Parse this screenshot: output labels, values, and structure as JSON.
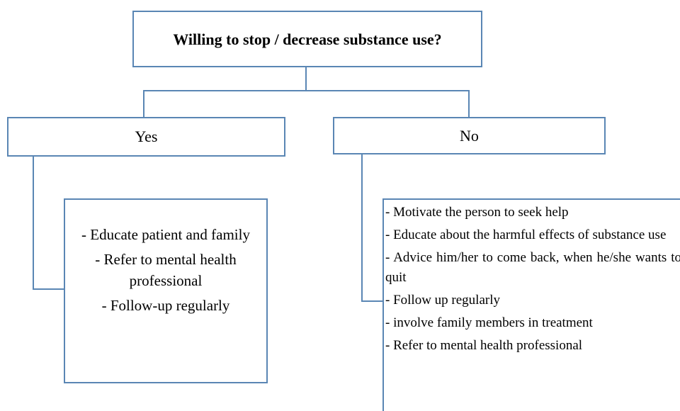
{
  "question": "Willing to stop / decrease substance use?",
  "yes": {
    "label": "Yes",
    "items": [
      "- Educate patient and family",
      "- Refer to mental health professional",
      "- Follow-up regularly"
    ]
  },
  "no": {
    "label": "No",
    "items": [
      "- Motivate the person to seek help",
      "- Educate about the harmful effects of substance use",
      "- Advice him/her to come back, when he/she wants to quit",
      "- Follow up regularly",
      "- involve family members in treatment",
      "- Refer to mental health professional"
    ]
  }
}
